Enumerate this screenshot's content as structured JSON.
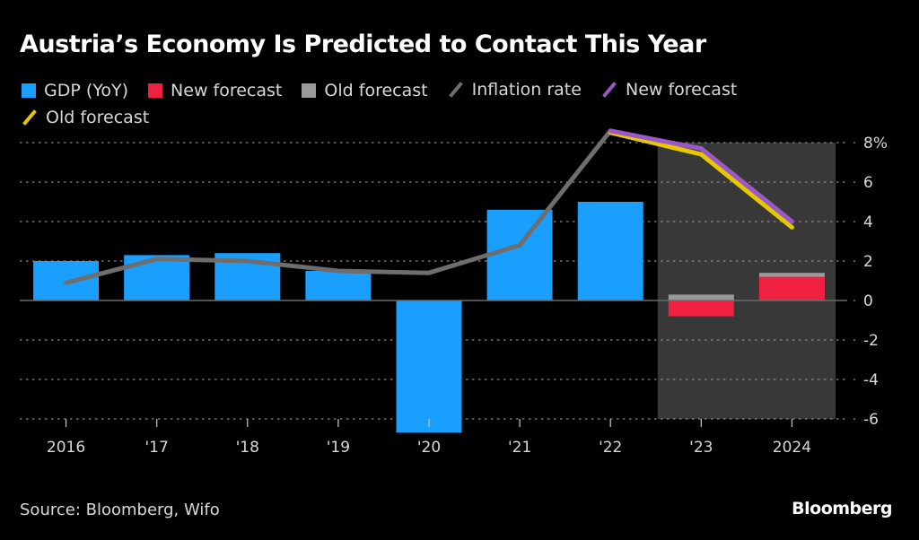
{
  "chart_data": {
    "type": "bar",
    "title": "Austria’s Economy Is Predicted to Contact This Year",
    "categories": [
      "2016",
      "'17",
      "'18",
      "'19",
      "'20",
      "'21",
      "'22",
      "'23",
      "2024"
    ],
    "ylim": [
      -6,
      8
    ],
    "yticks": [
      8,
      6,
      4,
      2,
      0,
      -2,
      -4,
      -6
    ],
    "ytick_labels": [
      "8%",
      "6",
      "4",
      "2",
      "0",
      "-2",
      "-4",
      "-6"
    ],
    "y_axis_position": "right",
    "grid": true,
    "shaded_region": {
      "from_category": "'23",
      "to_category": "2024",
      "color": "#383838"
    },
    "legend": [
      {
        "label": "GDP (YoY)",
        "kind": "box",
        "color": "#1a9fff"
      },
      {
        "label": "New forecast",
        "kind": "box",
        "color": "#ef2040"
      },
      {
        "label": "Old forecast",
        "kind": "box",
        "color": "#9a9a9a"
      },
      {
        "label": "Inflation rate",
        "kind": "line",
        "color": "#6e6e6e"
      },
      {
        "label": "New forecast",
        "kind": "line",
        "color": "#9b59c8"
      },
      {
        "label": "Old forecast",
        "kind": "line",
        "color": "#e6c800"
      }
    ],
    "bar_series": [
      {
        "name": "GDP (YoY)",
        "color": "#1a9fff",
        "values": [
          2.0,
          2.3,
          2.4,
          1.5,
          -6.7,
          4.6,
          5.0,
          null,
          null
        ]
      },
      {
        "name": "Old forecast (GDP)",
        "color": "#9a9a9a",
        "values": [
          null,
          null,
          null,
          null,
          null,
          null,
          null,
          0.3,
          1.4
        ]
      },
      {
        "name": "New forecast (GDP)",
        "color": "#ef2040",
        "values": [
          null,
          null,
          null,
          null,
          null,
          null,
          null,
          -0.8,
          1.2
        ]
      }
    ],
    "line_series": [
      {
        "name": "Inflation rate",
        "color": "#6e6e6e",
        "values": [
          0.9,
          2.1,
          2.0,
          1.5,
          1.4,
          2.8,
          8.6,
          null,
          null
        ]
      },
      {
        "name": "Old forecast (Inflation)",
        "color": "#e6c800",
        "values": [
          null,
          null,
          null,
          null,
          null,
          null,
          8.6,
          7.5,
          3.8
        ]
      },
      {
        "name": "New forecast (Inflation)",
        "color": "#9b59c8",
        "values": [
          null,
          null,
          null,
          null,
          null,
          null,
          8.6,
          7.7,
          4.0
        ]
      }
    ]
  },
  "footer": {
    "source": "Source: Bloomberg, Wifo",
    "brand": "Bloomberg"
  }
}
